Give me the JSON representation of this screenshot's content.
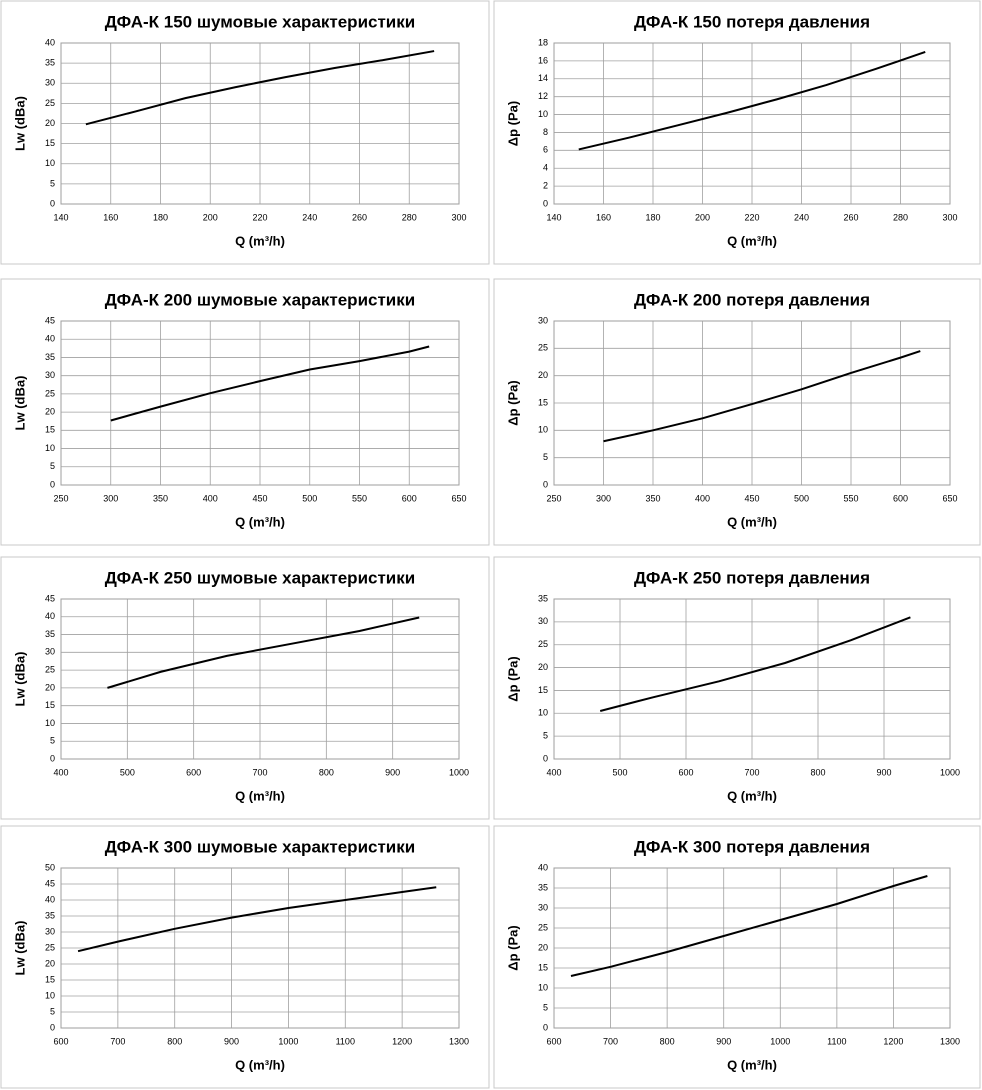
{
  "chart_data": [
    {
      "type": "line",
      "title": "ДФА-К 150 шумовые характеристики",
      "x_label": "Q (m³/h)",
      "y_label": "Lw (dBa)",
      "x": [
        150,
        170,
        190,
        210,
        230,
        250,
        270,
        290
      ],
      "values": [
        19.8,
        23.0,
        26.3,
        29.0,
        31.5,
        33.8,
        35.8,
        38.0
      ],
      "color": "#000000",
      "xlim": [
        140,
        300
      ],
      "xticks": [
        140,
        160,
        180,
        200,
        220,
        240,
        260,
        280,
        300
      ],
      "ylim": [
        0,
        40
      ],
      "yticks": [
        0,
        5,
        10,
        15,
        20,
        25,
        30,
        35,
        40
      ],
      "grid": true
    },
    {
      "type": "line",
      "title": "ДФА-К 150 потеря давления",
      "x_label": "Q (m³/h)",
      "y_label": "Δp (Pa)",
      "x": [
        150,
        170,
        190,
        210,
        230,
        250,
        270,
        290
      ],
      "values": [
        6.1,
        7.4,
        8.8,
        10.2,
        11.7,
        13.3,
        15.1,
        17.0
      ],
      "color": "#000000",
      "xlim": [
        140,
        300
      ],
      "xticks": [
        140,
        160,
        180,
        200,
        220,
        240,
        260,
        280,
        300
      ],
      "ylim": [
        0,
        18
      ],
      "yticks": [
        0,
        2,
        4,
        6,
        8,
        10,
        12,
        14,
        16,
        18
      ],
      "grid": true
    },
    {
      "type": "line",
      "title": "ДФА-К 200 шумовые характеристики",
      "x_label": "Q (m³/h)",
      "y_label": "Lw (dBa)",
      "x": [
        300,
        350,
        400,
        450,
        500,
        550,
        600,
        620
      ],
      "values": [
        17.7,
        21.5,
        25.2,
        28.5,
        31.7,
        34.0,
        36.6,
        38.0
      ],
      "color": "#000000",
      "xlim": [
        250,
        650
      ],
      "xticks": [
        250,
        300,
        350,
        400,
        450,
        500,
        550,
        600,
        650
      ],
      "ylim": [
        0,
        45
      ],
      "yticks": [
        0,
        5,
        10,
        15,
        20,
        25,
        30,
        35,
        40,
        45
      ],
      "grid": true
    },
    {
      "type": "line",
      "title": "ДФА-К 200 потеря давления",
      "x_label": "Q (m³/h)",
      "y_label": "Δp (Pa)",
      "x": [
        300,
        350,
        400,
        450,
        500,
        550,
        600,
        620
      ],
      "values": [
        8.0,
        10.0,
        12.2,
        14.8,
        17.5,
        20.5,
        23.3,
        24.5
      ],
      "color": "#000000",
      "xlim": [
        250,
        650
      ],
      "xticks": [
        250,
        300,
        350,
        400,
        450,
        500,
        550,
        600,
        650
      ],
      "ylim": [
        0,
        30
      ],
      "yticks": [
        0,
        5,
        10,
        15,
        20,
        25,
        30
      ],
      "grid": true
    },
    {
      "type": "line",
      "title": "ДФА-К 250 шумовые характеристики",
      "x_label": "Q (m³/h)",
      "y_label": "Lw (dBa)",
      "x": [
        470,
        550,
        650,
        750,
        850,
        940
      ],
      "values": [
        20.0,
        24.5,
        29.0,
        32.5,
        36.0,
        39.8
      ],
      "color": "#000000",
      "xlim": [
        400,
        1000
      ],
      "xticks": [
        400,
        500,
        600,
        700,
        800,
        900,
        1000
      ],
      "ylim": [
        0,
        45
      ],
      "yticks": [
        0,
        5,
        10,
        15,
        20,
        25,
        30,
        35,
        40,
        45
      ],
      "grid": true
    },
    {
      "type": "line",
      "title": "ДФА-К 250 потеря давления",
      "x_label": "Q (m³/h)",
      "y_label": "Δp (Pa)",
      "x": [
        470,
        550,
        650,
        750,
        850,
        940
      ],
      "values": [
        10.5,
        13.5,
        17.0,
        21.0,
        26.0,
        31.0
      ],
      "color": "#000000",
      "xlim": [
        400,
        1000
      ],
      "xticks": [
        400,
        500,
        600,
        700,
        800,
        900,
        1000
      ],
      "ylim": [
        0,
        35
      ],
      "yticks": [
        0,
        5,
        10,
        15,
        20,
        25,
        30,
        35
      ],
      "grid": true
    },
    {
      "type": "line",
      "title": "ДФА-К 300 шумовые характеристики",
      "x_label": "Q (m³/h)",
      "y_label": "Lw (dBa)",
      "x": [
        630,
        700,
        800,
        900,
        1000,
        1100,
        1200,
        1260
      ],
      "values": [
        24.0,
        27.0,
        31.0,
        34.5,
        37.5,
        40.0,
        42.5,
        44.0
      ],
      "color": "#000000",
      "xlim": [
        600,
        1300
      ],
      "xticks": [
        600,
        700,
        800,
        900,
        1000,
        1100,
        1200,
        1300
      ],
      "ylim": [
        0,
        50
      ],
      "yticks": [
        0,
        5,
        10,
        15,
        20,
        25,
        30,
        35,
        40,
        45,
        50
      ],
      "grid": true
    },
    {
      "type": "line",
      "title": "ДФА-К 300 потеря давления",
      "x_label": "Q (m³/h)",
      "y_label": "Δp (Pa)",
      "x": [
        630,
        700,
        800,
        900,
        1000,
        1100,
        1200,
        1260
      ],
      "values": [
        13.0,
        15.3,
        19.0,
        23.0,
        27.0,
        31.0,
        35.5,
        38.0
      ],
      "color": "#000000",
      "xlim": [
        600,
        1300
      ],
      "xticks": [
        600,
        700,
        800,
        900,
        1000,
        1100,
        1200,
        1300
      ],
      "ylim": [
        0,
        40
      ],
      "yticks": [
        0,
        5,
        10,
        15,
        20,
        25,
        30,
        35,
        40
      ],
      "grid": true
    }
  ]
}
